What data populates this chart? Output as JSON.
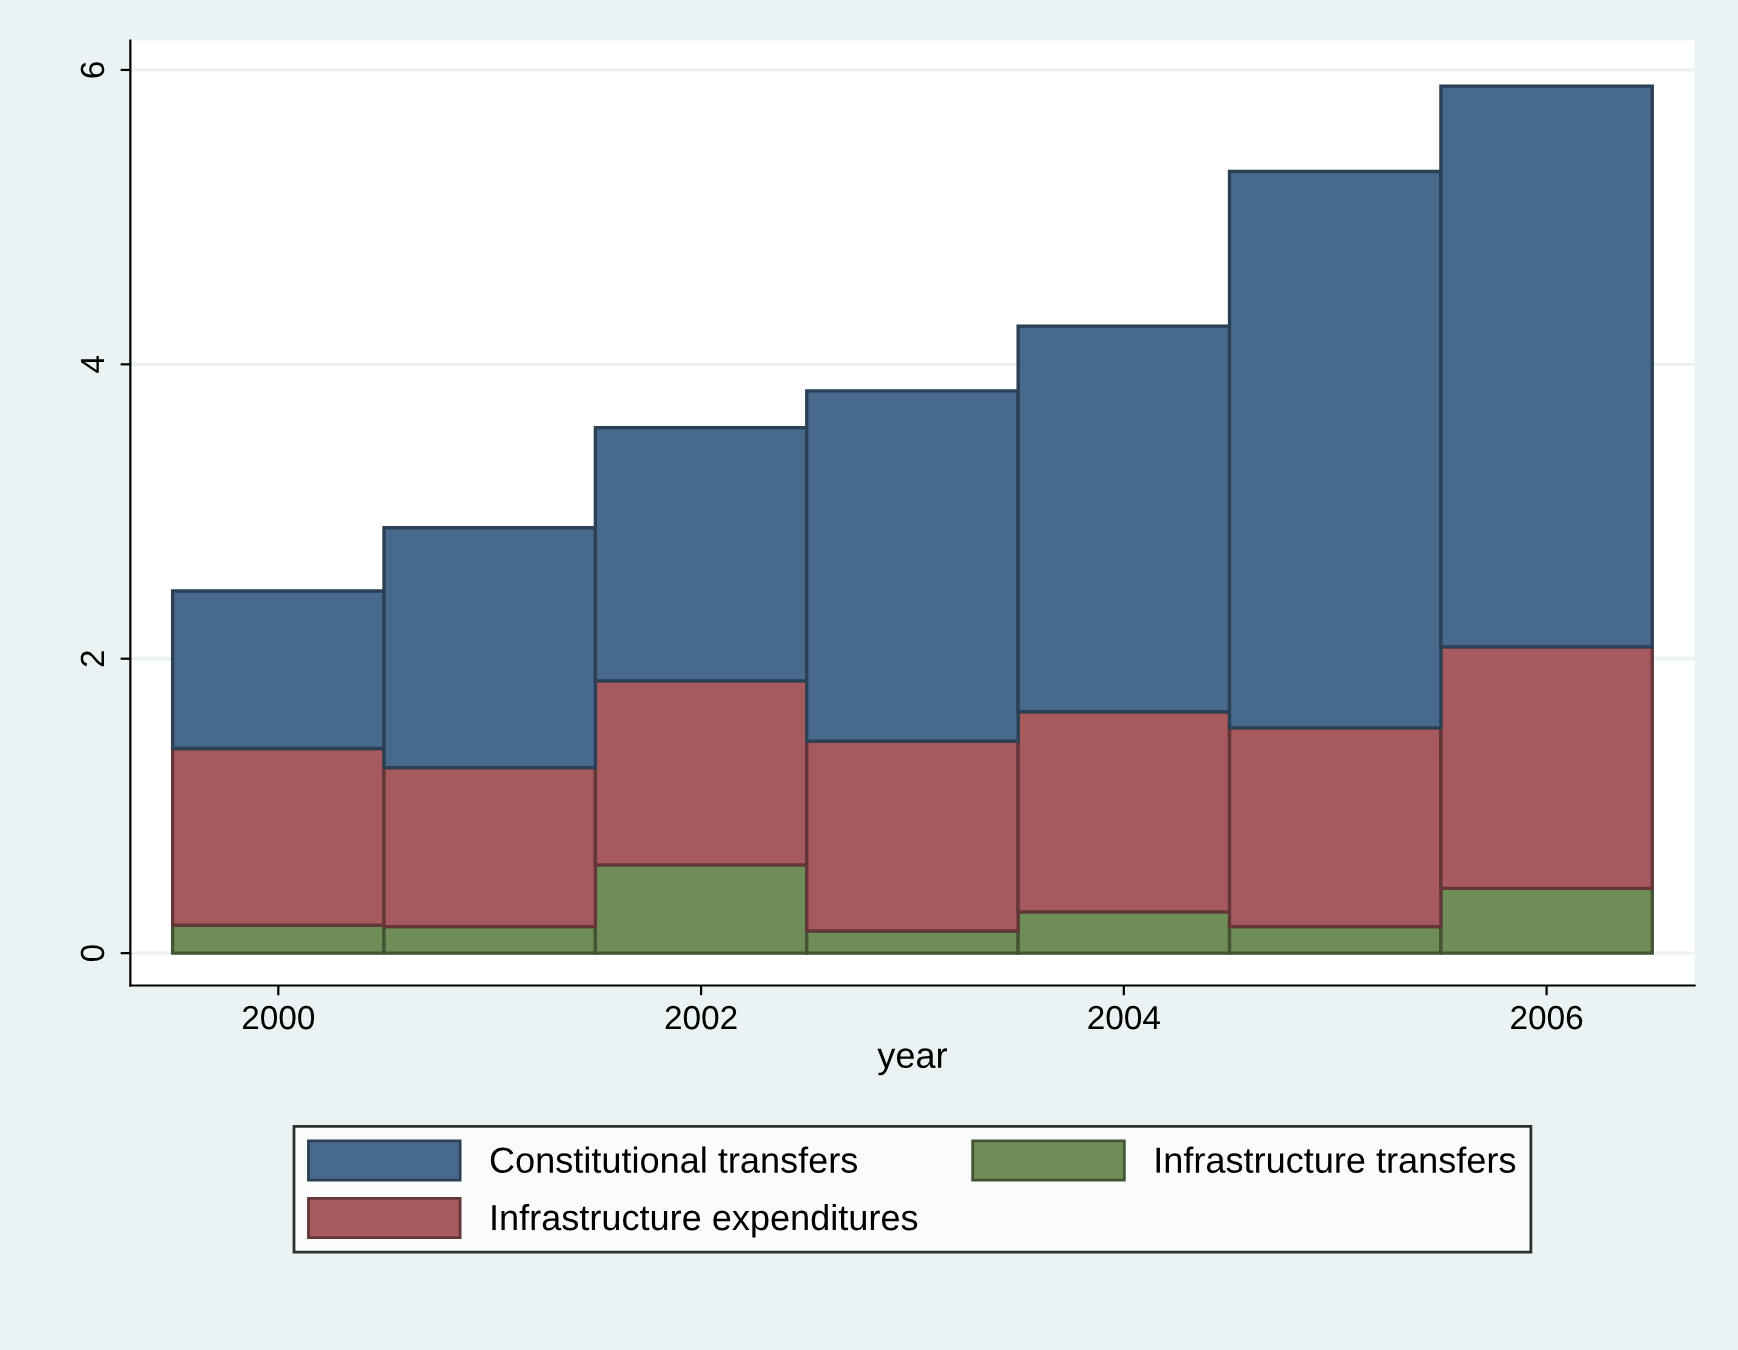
{
  "chart_data": {
    "type": "bar",
    "stacked": true,
    "xlabel": "year",
    "x": [
      2000,
      2001,
      2002,
      2003,
      2004,
      2005,
      2006
    ],
    "series": [
      {
        "name": "Infrastructure transfers",
        "color": "#6f8d57",
        "values": [
          0.19,
          0.18,
          0.6,
          0.15,
          0.28,
          0.18,
          0.44
        ]
      },
      {
        "name": "Infrastructure expenditures",
        "color": "#a65a5e",
        "values": [
          1.2,
          1.08,
          1.25,
          1.29,
          1.36,
          1.35,
          1.64
        ]
      },
      {
        "name": "Constitutional transfers",
        "color": "#476a8c",
        "values": [
          1.07,
          1.63,
          1.72,
          2.38,
          2.62,
          3.78,
          3.81
        ]
      }
    ],
    "xlim": [
      1999.3,
      2006.7
    ],
    "xticks": [
      2000,
      2002,
      2004,
      2006
    ],
    "ylim": [
      -0.22,
      6.2
    ],
    "yticks": [
      0,
      2,
      4,
      6
    ],
    "grid": "y",
    "legend": "bottom"
  }
}
